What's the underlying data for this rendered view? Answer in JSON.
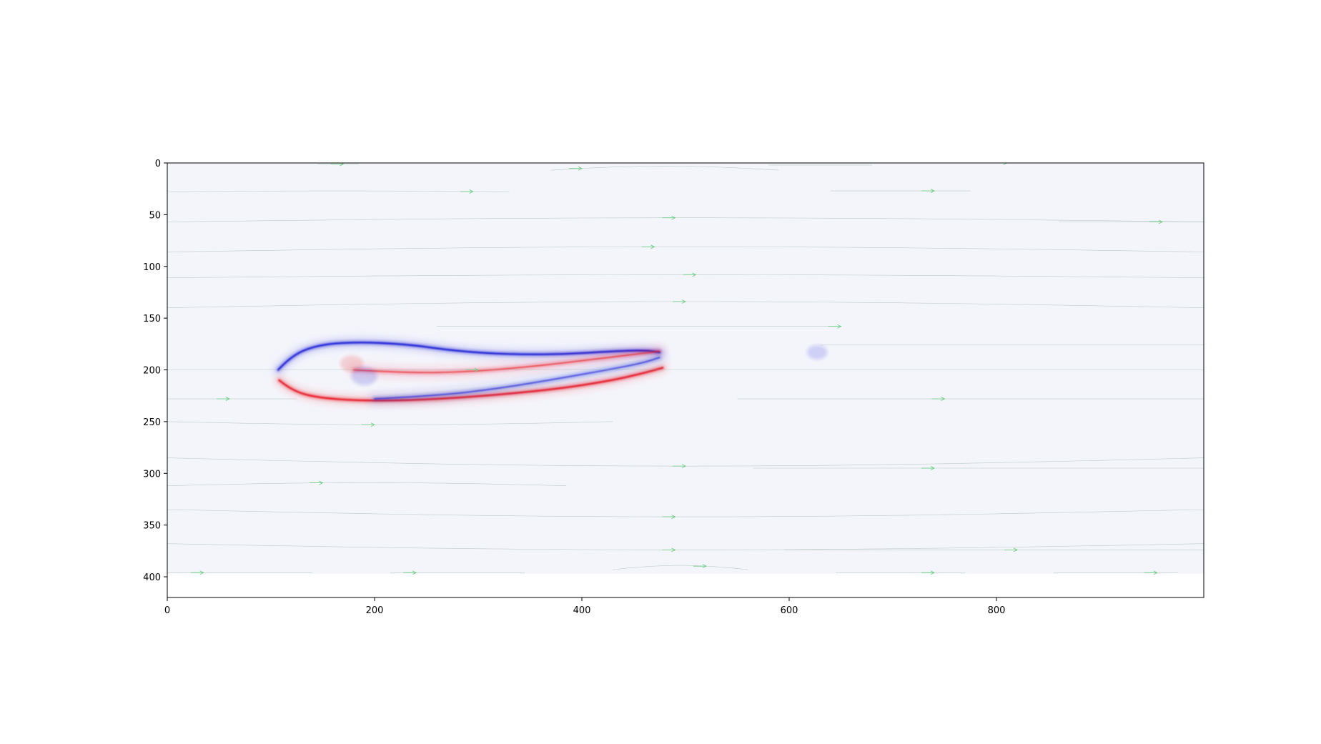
{
  "chart_data": {
    "type": "heatmap",
    "title": "",
    "xlabel": "",
    "ylabel": "",
    "xlim": [
      0,
      1000
    ],
    "ylim": [
      420,
      0
    ],
    "y_inverted": true,
    "grid": false,
    "x_ticks": [
      {
        "value": 0,
        "label": "0"
      },
      {
        "value": 200,
        "label": "200"
      },
      {
        "value": 400,
        "label": "400"
      },
      {
        "value": 600,
        "label": "600"
      },
      {
        "value": 800,
        "label": "800"
      }
    ],
    "y_ticks": [
      {
        "value": 0,
        "label": "0"
      },
      {
        "value": 50,
        "label": "50"
      },
      {
        "value": 100,
        "label": "100"
      },
      {
        "value": 150,
        "label": "150"
      },
      {
        "value": 200,
        "label": "200"
      },
      {
        "value": 250,
        "label": "250"
      },
      {
        "value": 300,
        "label": "300"
      },
      {
        "value": 350,
        "label": "350"
      },
      {
        "value": 400,
        "label": "400"
      }
    ],
    "field_extent": {
      "x": [
        0,
        1000
      ],
      "y": [
        0,
        397
      ]
    },
    "colors": {
      "background_field": "#f4f5fb",
      "positive": "#e8202a",
      "negative": "#2226d6",
      "streamline": "#8fa89a",
      "arrow": "#6fcf87"
    },
    "vortex_sheets": [
      {
        "sign": "negative",
        "points": [
          [
            107,
            200
          ],
          [
            120,
            186
          ],
          [
            145,
            176
          ],
          [
            180,
            173
          ],
          [
            230,
            175
          ],
          [
            280,
            182
          ],
          [
            330,
            185
          ],
          [
            380,
            185
          ],
          [
            430,
            182
          ],
          [
            460,
            181
          ],
          [
            475,
            183
          ]
        ]
      },
      {
        "sign": "positive",
        "points": [
          [
            108,
            210
          ],
          [
            120,
            220
          ],
          [
            145,
            227
          ],
          [
            190,
            230
          ],
          [
            250,
            229
          ],
          [
            320,
            224
          ],
          [
            380,
            218
          ],
          [
            430,
            210
          ],
          [
            460,
            203
          ],
          [
            478,
            198
          ]
        ]
      },
      {
        "sign": "positive",
        "points": [
          [
            180,
            200
          ],
          [
            230,
            203
          ],
          [
            290,
            202
          ],
          [
            350,
            197
          ],
          [
            410,
            190
          ],
          [
            450,
            185
          ],
          [
            475,
            182
          ]
        ]
      },
      {
        "sign": "negative",
        "points": [
          [
            200,
            228
          ],
          [
            260,
            225
          ],
          [
            320,
            218
          ],
          [
            380,
            208
          ],
          [
            430,
            199
          ],
          [
            460,
            193
          ],
          [
            475,
            188
          ]
        ]
      }
    ],
    "wake_blobs": [
      {
        "sign": "negative",
        "x": 627,
        "y": 183,
        "r": 7
      },
      {
        "sign": "positive",
        "x": 178,
        "y": 194,
        "r": 8
      },
      {
        "sign": "negative",
        "x": 190,
        "y": 206,
        "r": 9
      }
    ],
    "streamlines": [
      {
        "y0": 1,
        "x_range": [
          145,
          185
        ],
        "amp": 0,
        "arrow_x": 170
      },
      {
        "y0": 7,
        "x_range": [
          370,
          590
        ],
        "amp": -4,
        "arrow_x": 400
      },
      {
        "y0": 2,
        "x_range": [
          580,
          680
        ],
        "amp": 0,
        "arrow_x": 0
      },
      {
        "y0": 0,
        "x_range": [
          760,
          830
        ],
        "amp": 0,
        "arrow_x": 810
      },
      {
        "y0": 28,
        "x_range": [
          0,
          330
        ],
        "amp": -1,
        "arrow_x": 295
      },
      {
        "y0": 27,
        "x_range": [
          640,
          775
        ],
        "amp": 0,
        "arrow_x": 740
      },
      {
        "y0": 57,
        "x_range": [
          0,
          1000
        ],
        "amp": -4,
        "arrow_x": 490
      },
      {
        "y0": 57,
        "x_range": [
          860,
          1000
        ],
        "amp": 0,
        "arrow_x": 960
      },
      {
        "y0": 86,
        "x_range": [
          0,
          1000
        ],
        "amp": -5,
        "arrow_x": 470
      },
      {
        "y0": 111,
        "x_range": [
          0,
          1000
        ],
        "amp": -3,
        "arrow_x": 510
      },
      {
        "y0": 140,
        "x_range": [
          0,
          1000
        ],
        "amp": -6,
        "arrow_x": 500
      },
      {
        "y0": 158,
        "x_range": [
          260,
          650
        ],
        "amp": 0,
        "arrow_x": 650
      },
      {
        "y0": 176,
        "x_range": [
          630,
          1000
        ],
        "amp": 0,
        "arrow_x": 0
      },
      {
        "y0": 200,
        "x_range": [
          0,
          1000
        ],
        "amp": 0,
        "arrow_x": 300
      },
      {
        "y0": 228,
        "x_range": [
          0,
          125
        ],
        "amp": 0,
        "arrow_x": 60
      },
      {
        "y0": 228,
        "x_range": [
          550,
          1000
        ],
        "amp": 0,
        "arrow_x": 750
      },
      {
        "y0": 250,
        "x_range": [
          0,
          430
        ],
        "amp": 3,
        "arrow_x": 200
      },
      {
        "y0": 285,
        "x_range": [
          0,
          1000
        ],
        "amp": 8,
        "arrow_x": 500
      },
      {
        "y0": 295,
        "x_range": [
          565,
          1000
        ],
        "amp": 0,
        "arrow_x": 740
      },
      {
        "y0": 312,
        "x_range": [
          0,
          385
        ],
        "amp": -3,
        "arrow_x": 150
      },
      {
        "y0": 335,
        "x_range": [
          0,
          1000
        ],
        "amp": 7,
        "arrow_x": 490
      },
      {
        "y0": 368,
        "x_range": [
          0,
          1000
        ],
        "amp": 6,
        "arrow_x": 490
      },
      {
        "y0": 374,
        "x_range": [
          595,
          1000
        ],
        "amp": 0,
        "arrow_x": 820
      },
      {
        "y0": 396,
        "x_range": [
          0,
          140
        ],
        "amp": 0,
        "arrow_x": 35
      },
      {
        "y0": 396,
        "x_range": [
          215,
          345
        ],
        "amp": 0,
        "arrow_x": 240
      },
      {
        "y0": 393,
        "x_range": [
          430,
          560
        ],
        "amp": -4,
        "arrow_x": 520
      },
      {
        "y0": 396,
        "x_range": [
          645,
          770
        ],
        "amp": 0,
        "arrow_x": 740
      },
      {
        "y0": 396,
        "x_range": [
          855,
          975
        ],
        "amp": 0,
        "arrow_x": 955
      }
    ]
  }
}
